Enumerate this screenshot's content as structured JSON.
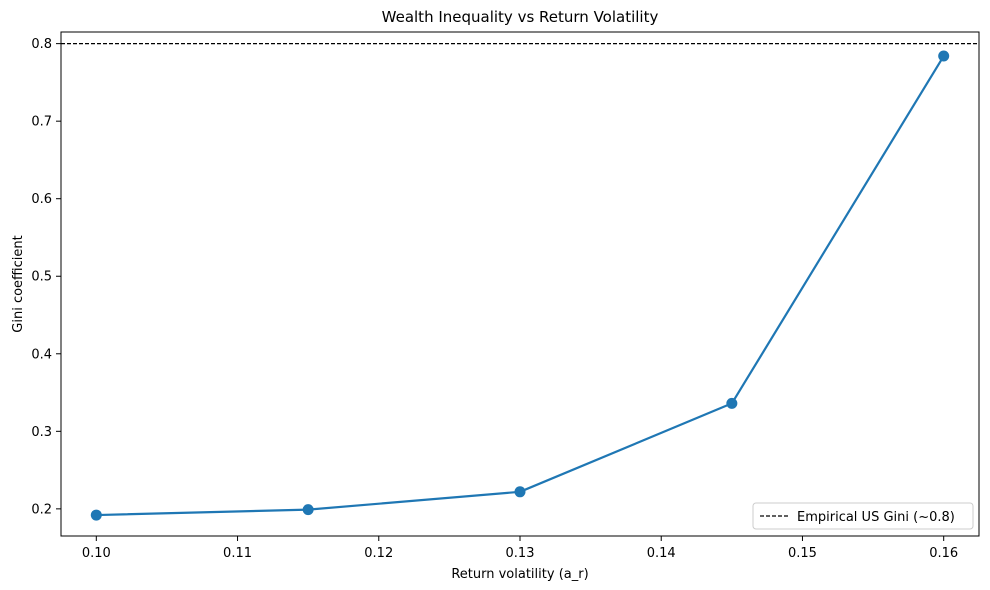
{
  "chart_data": {
    "type": "line",
    "title": "Wealth Inequality vs Return Volatility",
    "xlabel": "Return volatility (a_r)",
    "ylabel": "Gini coefficient",
    "xlim": [
      0.0975,
      0.1625
    ],
    "ylim": [
      0.165,
      0.815
    ],
    "x_ticks": [
      0.1,
      0.11,
      0.12,
      0.13,
      0.14,
      0.15,
      0.16
    ],
    "x_tick_labels": [
      "0.10",
      "0.11",
      "0.12",
      "0.13",
      "0.14",
      "0.15",
      "0.16"
    ],
    "y_ticks": [
      0.2,
      0.3,
      0.4,
      0.5,
      0.6,
      0.7,
      0.8
    ],
    "y_tick_labels": [
      "0.2",
      "0.3",
      "0.4",
      "0.5",
      "0.6",
      "0.7",
      "0.8"
    ],
    "grid": false,
    "series": [
      {
        "color": "#1f77b4",
        "marker": "circle",
        "x": [
          0.1,
          0.115,
          0.13,
          0.145,
          0.16
        ],
        "y": [
          0.192,
          0.199,
          0.222,
          0.336,
          0.784
        ]
      }
    ],
    "reference_lines": [
      {
        "orientation": "horizontal",
        "value": 0.8,
        "style": "dashed",
        "color": "#000000",
        "name": "Empirical US Gini (~0.8)"
      }
    ],
    "legend": {
      "placement": "lower-right",
      "entries": [
        "Empirical US Gini (~0.8)"
      ]
    }
  }
}
